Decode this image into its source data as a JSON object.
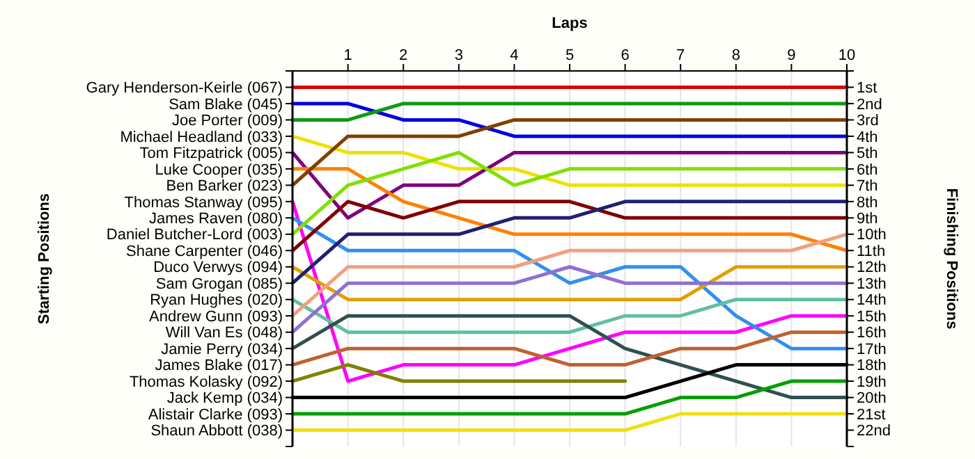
{
  "chart_data": {
    "type": "line",
    "xlabel": "Laps",
    "ylabel": "Finishing Positions",
    "x": [
      0,
      1,
      2,
      3,
      4,
      5,
      6,
      7,
      8,
      9,
      10
    ],
    "xlim": [
      0,
      10
    ],
    "xticks": [
      1,
      2,
      3,
      4,
      5,
      6,
      7,
      8,
      9,
      10
    ],
    "ylim": [
      23,
      0
    ],
    "yticks": [
      {
        "value": 0,
        "label": null
      },
      {
        "value": 1,
        "label": "1st"
      },
      {
        "value": 2,
        "label": "2nd"
      },
      {
        "value": 3,
        "label": "3rd"
      },
      {
        "value": 4,
        "label": "4th"
      },
      {
        "value": 5,
        "label": "5th"
      },
      {
        "value": 6,
        "label": "6th"
      },
      {
        "value": 7,
        "label": "7th"
      },
      {
        "value": 8,
        "label": "8th"
      },
      {
        "value": 9,
        "label": "9th"
      },
      {
        "value": 10,
        "label": "10th"
      },
      {
        "value": 11,
        "label": "11th"
      },
      {
        "value": 12,
        "label": "12th"
      },
      {
        "value": 13,
        "label": "13th"
      },
      {
        "value": 14,
        "label": "14th"
      },
      {
        "value": 15,
        "label": "15th"
      },
      {
        "value": 16,
        "label": "16th"
      },
      {
        "value": 17,
        "label": "17th"
      },
      {
        "value": 18,
        "label": "18th"
      },
      {
        "value": 19,
        "label": "19th"
      },
      {
        "value": 20,
        "label": "20th"
      },
      {
        "value": 21,
        "label": "21st"
      },
      {
        "value": 22,
        "label": "22nd"
      },
      {
        "value": 23,
        "label": null
      }
    ],
    "grid": "x",
    "marker": "none",
    "line_style": "solid",
    "annotations": [
      "Starting Positions",
      "Gary Henderson-Keirle (067)",
      "Sam Blake (045)",
      "Joe Porter (009)",
      "Michael Headland (033)",
      "Tom Fitzpatrick (005)",
      "Luke Cooper (035)",
      "Ben Barker (023)",
      "Thomas Stanway (095)",
      "James Raven (080)",
      "Daniel Butcher-Lord (003)",
      "Shane Carpenter (046)",
      "Duco Verwys (094)",
      "Sam Grogan (085)",
      "Ryan Hughes (020)",
      "Andrew Gunn (093)",
      "Will Van Es (048)",
      "Jamie Perry (034)",
      "James Blake (017)",
      "Thomas Kolasky (092)",
      "Jack Kemp (034)",
      "Alistair Clarke (093)",
      "Shaun Abbott (038)"
    ],
    "series": [
      {
        "color": "#e00000",
        "values": [
          1,
          1,
          1,
          1,
          1,
          1,
          1,
          1,
          1,
          1,
          1
        ]
      },
      {
        "color": "#0000e0",
        "values": [
          2,
          2,
          3,
          3,
          4,
          4,
          4,
          4,
          4,
          4,
          4
        ]
      },
      {
        "color": "#109a10",
        "values": [
          3,
          3,
          2,
          2,
          2,
          2,
          2,
          2,
          2,
          2,
          2
        ]
      },
      {
        "color": "#f0e000",
        "values": [
          4,
          5,
          5,
          6,
          6,
          7,
          7,
          7,
          7,
          7,
          7
        ]
      },
      {
        "color": "#800080",
        "values": [
          5,
          9,
          7,
          7,
          5,
          5,
          5,
          5,
          5,
          5,
          5
        ]
      },
      {
        "color": "#ff8000",
        "values": [
          6,
          6,
          8,
          9,
          10,
          10,
          10,
          10,
          10,
          10,
          11
        ]
      },
      {
        "color": "#804000",
        "values": [
          7,
          4,
          4,
          4,
          3,
          3,
          3,
          3,
          3,
          3,
          3
        ]
      },
      {
        "color": "#ff00ff",
        "values": [
          8,
          19,
          18,
          18,
          18,
          17,
          16,
          16,
          16,
          15,
          15
        ]
      },
      {
        "color": "#3090f0",
        "values": [
          9,
          11,
          11,
          11,
          11,
          13,
          12,
          12,
          15,
          17,
          17
        ]
      },
      {
        "color": "#80e000",
        "values": [
          10,
          7,
          6,
          5,
          7,
          6,
          6,
          6,
          6,
          6,
          6
        ]
      },
      {
        "color": "#800000",
        "values": [
          11,
          8,
          9,
          8,
          8,
          8,
          9,
          9,
          9,
          9,
          9
        ]
      },
      {
        "color": "#e0a000",
        "values": [
          12,
          14,
          14,
          14,
          14,
          14,
          14,
          14,
          12,
          12,
          12
        ]
      },
      {
        "color": "#202070",
        "values": [
          13,
          10,
          10,
          10,
          9,
          9,
          8,
          8,
          8,
          8,
          8
        ]
      },
      {
        "color": "#60c0a0",
        "values": [
          14,
          16,
          16,
          16,
          16,
          16,
          15,
          15,
          14,
          14,
          14
        ]
      },
      {
        "color": "#f0a080",
        "values": [
          15,
          12,
          12,
          12,
          12,
          11,
          11,
          11,
          11,
          11,
          10
        ]
      },
      {
        "color": "#9070d0",
        "values": [
          16,
          13,
          13,
          13,
          13,
          12,
          13,
          13,
          13,
          13,
          13
        ]
      },
      {
        "color": "#305050",
        "values": [
          17,
          15,
          15,
          15,
          15,
          15,
          17,
          18,
          19,
          20,
          20
        ]
      },
      {
        "color": "#c06030",
        "values": [
          18,
          17,
          17,
          17,
          17,
          18,
          18,
          17,
          17,
          16,
          16
        ]
      },
      {
        "color": "#808000",
        "values": [
          19,
          18,
          19,
          19,
          19,
          19,
          19,
          null,
          null,
          null,
          null
        ]
      },
      {
        "color": "#000000",
        "values": [
          20,
          20,
          20,
          20,
          20,
          20,
          20,
          19,
          18,
          18,
          18
        ]
      },
      {
        "color": "#00a000",
        "values": [
          21,
          21,
          21,
          21,
          21,
          21,
          21,
          20,
          20,
          19,
          19
        ]
      },
      {
        "color": "#f0e010",
        "values": [
          22,
          22,
          22,
          22,
          22,
          22,
          22,
          21,
          21,
          21,
          21
        ]
      }
    ]
  }
}
